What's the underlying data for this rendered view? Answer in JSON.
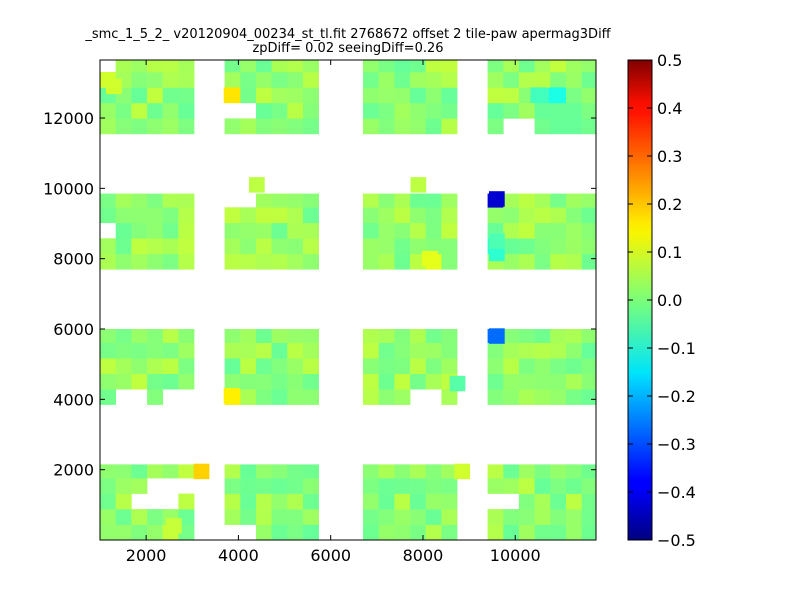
{
  "chart_data": {
    "type": "heatmap",
    "title": "_smc_1_5_2_ v20120904_00234_st_tl.fit 2768672 offset 2 tile-paw apermag3Diff",
    "subtitle": "zpDiff= 0.02 seeingDiff=0.26",
    "xlabel": "",
    "ylabel": "",
    "xlim": [
      1000,
      11750
    ],
    "ylim": [
      0,
      13650
    ],
    "xticks": [
      2000,
      4000,
      6000,
      8000,
      10000
    ],
    "yticks": [
      2000,
      4000,
      6000,
      8000,
      10000,
      12000
    ],
    "xtick_labels": [
      "2000",
      "4000",
      "6000",
      "8000",
      "10000"
    ],
    "ytick_labels": [
      "2000",
      "4000",
      "6000",
      "8000",
      "10000",
      "12000"
    ],
    "colorbar": {
      "colormap": "jet",
      "vmin": -0.5,
      "vmax": 0.5,
      "ticks": [
        0.5,
        0.4,
        0.3,
        0.2,
        0.1,
        0.0,
        -0.1,
        -0.2,
        -0.3,
        -0.4,
        -0.5
      ],
      "tick_labels": [
        "0.5",
        "0.4",
        "0.3",
        "0.2",
        "0.1",
        "0.0",
        "−0.1",
        "−0.2",
        "−0.3",
        "−0.4",
        "−0.5"
      ]
    },
    "grid": false,
    "cell_size": [
      340,
      440
    ],
    "detector_columns": [
      {
        "x_start": 1000,
        "x_end": 3040
      },
      {
        "x_start": 3700,
        "x_end": 5740
      },
      {
        "x_start": 6700,
        "x_end": 8740
      },
      {
        "x_start": 9400,
        "x_end": 11750
      }
    ],
    "detector_rows": [
      {
        "y_start": 0,
        "y_end": 2150
      },
      {
        "y_start": 3850,
        "y_end": 6000
      },
      {
        "y_start": 7700,
        "y_end": 9850
      },
      {
        "y_start": 11550,
        "y_end": 13650
      }
    ],
    "base_value": 0.02,
    "outlier_cells": [
      {
        "x": 3200,
        "y": 1950,
        "value": 0.17
      },
      {
        "x": 8850,
        "y": 1950,
        "value": 0.08
      },
      {
        "x": 3850,
        "y": 4100,
        "value": 0.14
      },
      {
        "x": 8150,
        "y": 8000,
        "value": 0.1
      },
      {
        "x": 9600,
        "y": 9700,
        "value": -0.42
      },
      {
        "x": 9600,
        "y": 5800,
        "value": -0.27
      },
      {
        "x": 9600,
        "y": 8150,
        "value": -0.08
      },
      {
        "x": 9600,
        "y": 8500,
        "value": -0.05
      },
      {
        "x": 3850,
        "y": 12650,
        "value": 0.15
      },
      {
        "x": 10900,
        "y": 12650,
        "value": -0.1
      },
      {
        "x": 10500,
        "y": 12650,
        "value": -0.06
      },
      {
        "x": 8750,
        "y": 4450,
        "value": -0.04
      },
      {
        "x": 4400,
        "y": 10100,
        "value": 0.06
      },
      {
        "x": 7900,
        "y": 10100,
        "value": 0.06
      },
      {
        "x": 1300,
        "y": 12900,
        "value": 0.08
      },
      {
        "x": 2600,
        "y": 400,
        "value": 0.07
      }
    ]
  }
}
